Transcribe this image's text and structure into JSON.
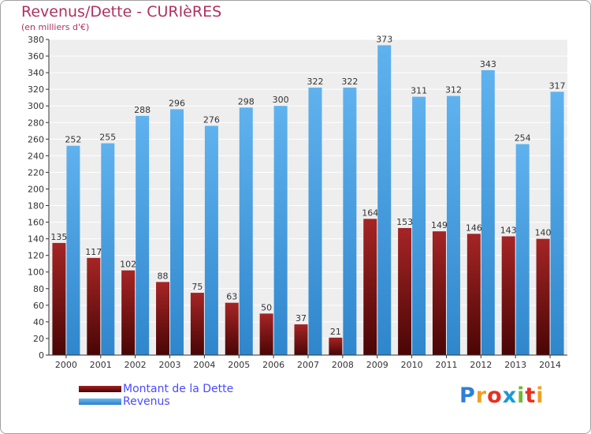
{
  "chart_data": {
    "type": "bar",
    "title": "Revenus/Dette - CURIèRES",
    "subtitle": "(en milliers d'€)",
    "categories": [
      "2000",
      "2001",
      "2002",
      "2003",
      "2004",
      "2005",
      "2006",
      "2007",
      "2008",
      "2009",
      "2010",
      "2011",
      "2012",
      "2013",
      "2014"
    ],
    "series": [
      {
        "name": "Montant de la Dette",
        "color": "#7a1010",
        "values": [
          135,
          117,
          102,
          88,
          75,
          63,
          50,
          37,
          21,
          164,
          153,
          149,
          146,
          143,
          140
        ]
      },
      {
        "name": "Revenus",
        "color": "#4aa3e6",
        "values": [
          252,
          255,
          288,
          296,
          276,
          298,
          300,
          322,
          322,
          373,
          311,
          312,
          343,
          254,
          317
        ]
      }
    ],
    "ylim": [
      0,
      380
    ],
    "yticks": [
      0,
      20,
      40,
      60,
      80,
      100,
      120,
      140,
      160,
      180,
      200,
      220,
      240,
      260,
      280,
      300,
      320,
      340,
      360,
      380
    ],
    "grid": true,
    "legend_position": "bottom-left"
  },
  "logo": {
    "text": "Proxiti",
    "letters": [
      "P",
      "r",
      "o",
      "x",
      "i",
      "t",
      "i"
    ],
    "colors": [
      "#2f7fd8",
      "#f0a020",
      "#e83020",
      "#1a9ad6",
      "#70b838",
      "#e83020",
      "#f0a020"
    ]
  }
}
